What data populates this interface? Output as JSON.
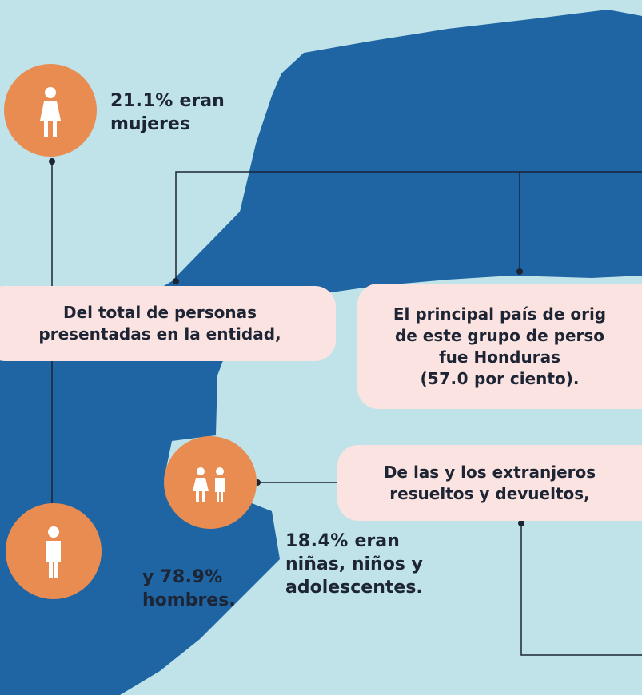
{
  "women": {
    "pct": "21.1%",
    "text": "eran",
    "line2": "mujeres"
  },
  "men": {
    "prefix": "y",
    "pct": "78.9%",
    "line2": "hombres."
  },
  "children": {
    "pct": "18.4%",
    "text": "eran",
    "line2": "niñas, niños y",
    "line3": "adolescentes."
  },
  "box_total": {
    "lines": [
      "Del total de personas",
      "presentadas en la entidad,"
    ]
  },
  "box_country": {
    "lines": [
      "El principal país de orig",
      "de este grupo de perso",
      "fue Honduras"
    ],
    "open": "(",
    "value": "57.0",
    "close": "por ciento)."
  },
  "box_foreign": {
    "lines": [
      "De las y los extranjeros",
      "resueltos y devueltos,"
    ]
  }
}
